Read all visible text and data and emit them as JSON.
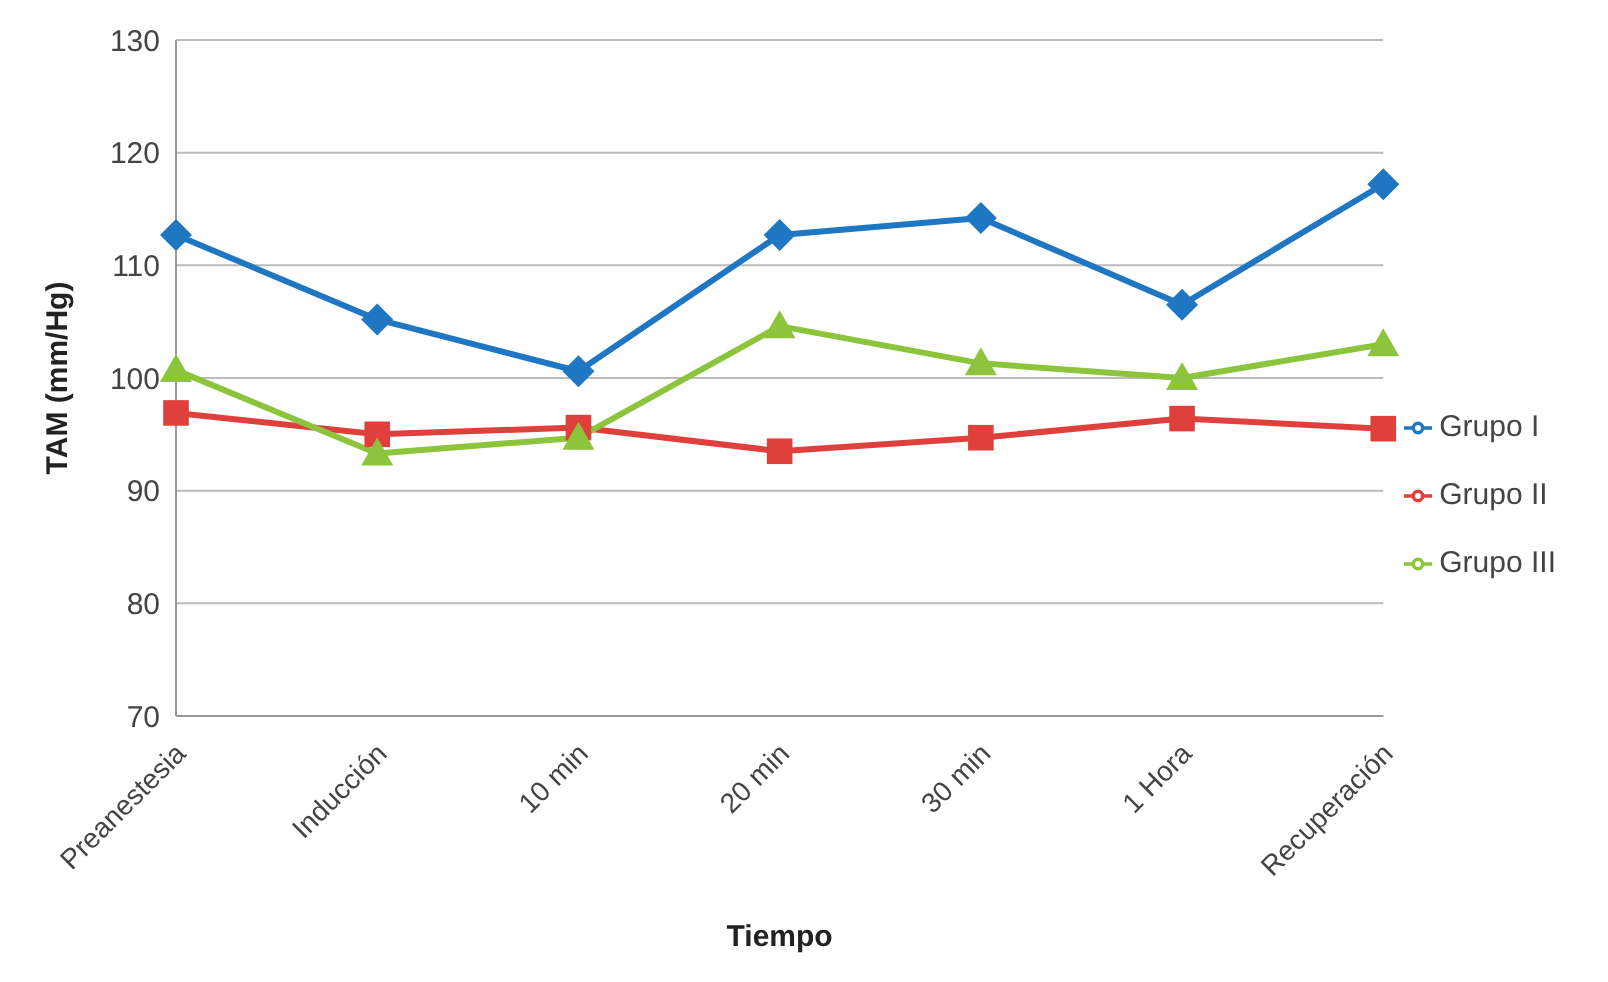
{
  "chart_data": {
    "type": "line",
    "xlabel": "Tiempo",
    "ylabel": "TAM (mm/Hg)",
    "categories": [
      "Preanestesia",
      "Inducción",
      "10 min",
      "20 min",
      "30 min",
      "1 Hora",
      "Recuperación"
    ],
    "series": [
      {
        "name": "Grupo I",
        "color": "#1f77c4",
        "marker": "diamond",
        "values": [
          112.7,
          105.2,
          100.6,
          112.7,
          114.2,
          106.5,
          117.2
        ]
      },
      {
        "name": "Grupo II",
        "color": "#e0403c",
        "marker": "square",
        "values": [
          96.9,
          95,
          95.6,
          93.5,
          94.7,
          96.4,
          95.5
        ]
      },
      {
        "name": "Grupo III",
        "color": "#8cc43c",
        "marker": "triangle",
        "values": [
          100.7,
          93.3,
          94.7,
          104.6,
          101.3,
          100,
          103
        ]
      }
    ],
    "ylim": [
      70,
      130
    ],
    "yticks": [
      70,
      80,
      90,
      100,
      110,
      120,
      130
    ],
    "grid": "y",
    "legend": "right",
    "line_style": "solid"
  }
}
